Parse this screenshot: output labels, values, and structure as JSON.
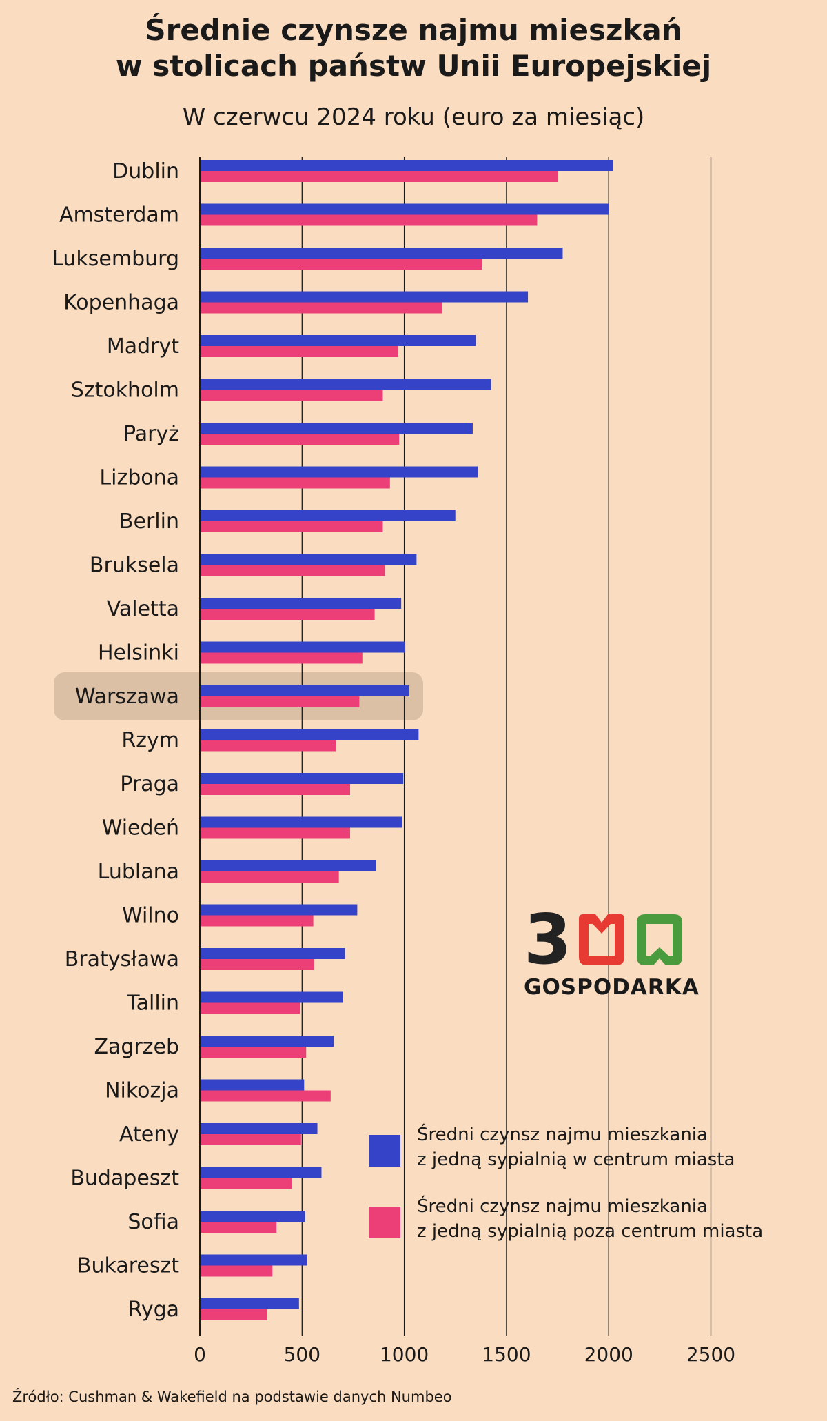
{
  "header": {
    "title_line1": "Średnie czynsze najmu mieszkań",
    "title_line2": "w stolicach państw Unii Europejskiej",
    "subtitle": "W czerwcu 2024 roku (euro za miesiąc)"
  },
  "colors": {
    "background": "#fadcc0",
    "series_center": "#3443c8",
    "series_outside": "#ec3f78",
    "highlight": "#dcc0a5",
    "logo_dark": "#222222",
    "logo_red": "#e63a32",
    "logo_green": "#4a9a3e"
  },
  "chart_data": {
    "type": "bar",
    "orientation": "horizontal",
    "categories": [
      "Dublin",
      "Amsterdam",
      "Luksemburg",
      "Kopenhaga",
      "Madryt",
      "Sztokholm",
      "Paryż",
      "Lizbona",
      "Berlin",
      "Bruksela",
      "Valetta",
      "Helsinki",
      "Warszawa",
      "Rzym",
      "Praga",
      "Wiedeń",
      "Lublana",
      "Wilno",
      "Bratysława",
      "Tallin",
      "Zagrzeb",
      "Nikozja",
      "Ateny",
      "Budapeszt",
      "Sofia",
      "Bukareszt",
      "Ryga"
    ],
    "highlighted_category": "Warszawa",
    "series": [
      {
        "name": "Średni czynsz najmu mieszkania z jedną sypialnią w centrum miasta",
        "values": [
          2020,
          2000,
          1775,
          1605,
          1350,
          1425,
          1335,
          1360,
          1250,
          1060,
          985,
          1005,
          1025,
          1070,
          995,
          990,
          860,
          770,
          710,
          700,
          655,
          510,
          575,
          595,
          515,
          525,
          485
        ]
      },
      {
        "name": "Średni czynsz najmu mieszkania z jedną sypialnią poza centrum miasta",
        "values": [
          1750,
          1650,
          1380,
          1185,
          970,
          895,
          975,
          930,
          895,
          905,
          855,
          795,
          780,
          665,
          735,
          735,
          680,
          555,
          560,
          490,
          520,
          640,
          495,
          450,
          375,
          355,
          330
        ]
      }
    ],
    "xlim": [
      0,
      2500
    ],
    "xticks": [
      0,
      500,
      1000,
      1500,
      2000,
      2500
    ],
    "grid": true,
    "legend_position": "bottom-right"
  },
  "legend": {
    "center_line1": "Średni czynsz najmu mieszkania",
    "center_line2": "z jedną sypialnią w centrum miasta",
    "outside_line1": "Średni czynsz najmu mieszkania",
    "outside_line2": "z jedną sypialnią poza centrum miasta"
  },
  "logo": {
    "digit": "3",
    "text": "GOSPODARKA"
  },
  "source": "Źródło: Cushman & Wakefield na podstawie danych Numbeo"
}
